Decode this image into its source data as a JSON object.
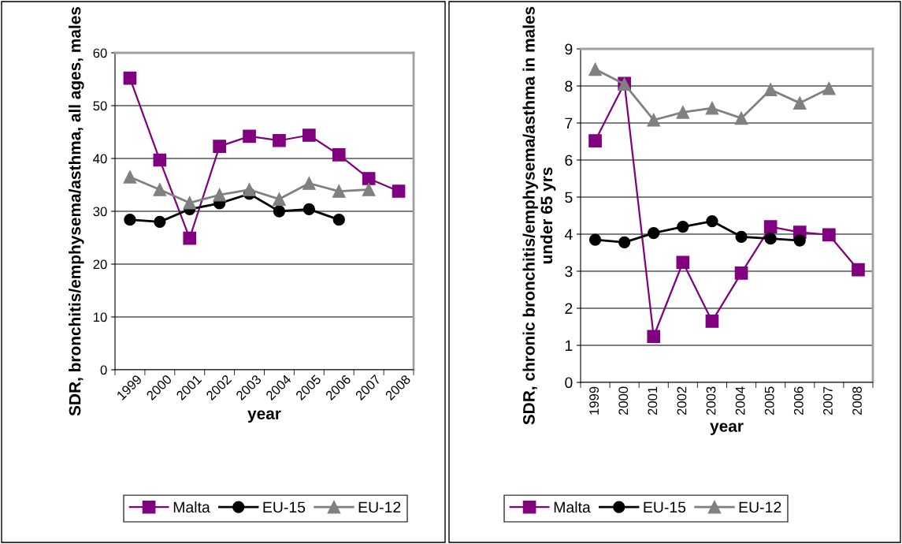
{
  "chart_data": [
    {
      "type": "line",
      "ylabel": "SDR, bronchitis/emphysema/asthma, all ages, males",
      "xlabel": "year",
      "categories": [
        "1999",
        "2000",
        "2001",
        "2002",
        "2003",
        "2004",
        "2005",
        "2006",
        "2007",
        "2008"
      ],
      "series": [
        {
          "name": "Malta",
          "color": "#800080",
          "marker": "square",
          "values": [
            55.2,
            39.7,
            24.9,
            42.3,
            44.2,
            43.4,
            44.4,
            40.7,
            36.2,
            33.8
          ]
        },
        {
          "name": "EU-15",
          "color": "#000000",
          "marker": "circle",
          "values": [
            28.4,
            28.0,
            30.4,
            31.5,
            33.3,
            30.0,
            30.4,
            28.4,
            null,
            null
          ]
        },
        {
          "name": "EU-12",
          "color": "#808080",
          "marker": "triangle",
          "values": [
            36.5,
            34.1,
            31.6,
            33.1,
            34.1,
            32.3,
            35.3,
            33.8,
            34.1,
            null
          ]
        }
      ],
      "ylim": [
        0,
        60
      ],
      "yticks": [
        0,
        10,
        20,
        30,
        40,
        50,
        60
      ],
      "grid": "y",
      "legend": "bottom"
    },
    {
      "type": "line",
      "ylabel": "SDR, chronic bronchitis/emphysema/asthma in males under 65 yrs",
      "xlabel": "year",
      "categories": [
        "1999",
        "2000",
        "2001",
        "2002",
        "2003",
        "2004",
        "2005",
        "2006",
        "2007",
        "2008"
      ],
      "series": [
        {
          "name": "Malta",
          "color": "#800080",
          "marker": "square",
          "values": [
            6.52,
            8.07,
            1.24,
            3.24,
            1.65,
            2.95,
            4.2,
            4.05,
            3.98,
            3.04
          ]
        },
        {
          "name": "EU-15",
          "color": "#000000",
          "marker": "circle",
          "values": [
            3.85,
            3.78,
            4.03,
            4.2,
            4.35,
            3.93,
            3.88,
            3.83,
            null,
            null
          ]
        },
        {
          "name": "EU-12",
          "color": "#808080",
          "marker": "triangle",
          "values": [
            8.45,
            8.05,
            7.08,
            7.29,
            7.4,
            7.13,
            7.9,
            7.54,
            7.93,
            null
          ]
        }
      ],
      "ylim": [
        0,
        9
      ],
      "yticks": [
        0,
        1,
        2,
        3,
        4,
        5,
        6,
        7,
        8,
        9
      ],
      "grid": "y",
      "legend": "bottom"
    }
  ]
}
